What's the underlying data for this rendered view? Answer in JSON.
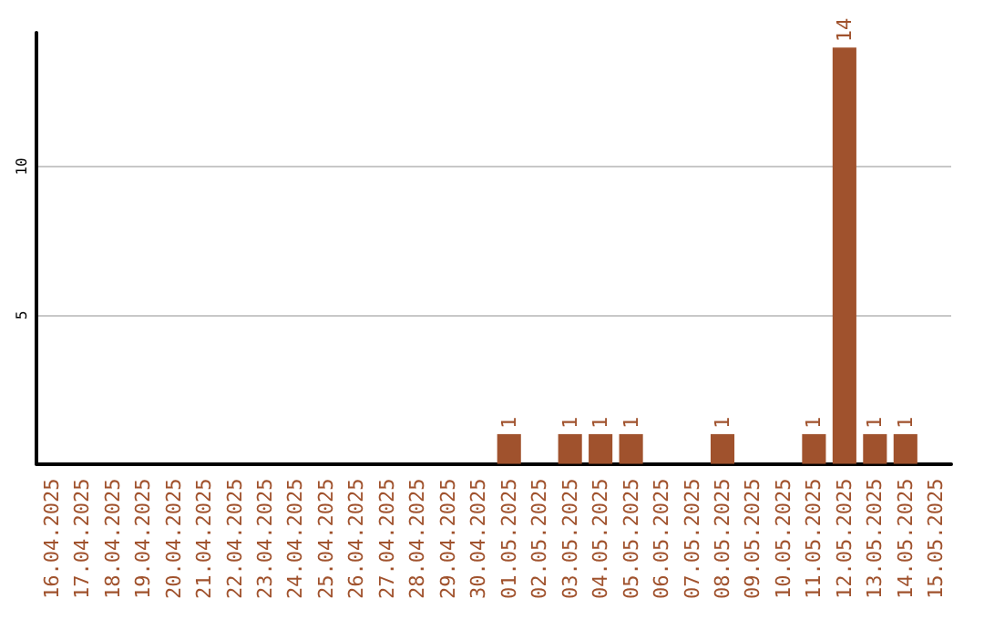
{
  "chart_data": {
    "type": "bar",
    "categories": [
      "16.04.2025",
      "17.04.2025",
      "18.04.2025",
      "19.04.2025",
      "20.04.2025",
      "21.04.2025",
      "22.04.2025",
      "23.04.2025",
      "24.04.2025",
      "25.04.2025",
      "26.04.2025",
      "27.04.2025",
      "28.04.2025",
      "29.04.2025",
      "30.04.2025",
      "01.05.2025",
      "02.05.2025",
      "03.05.2025",
      "04.05.2025",
      "05.05.2025",
      "06.05.2025",
      "07.05.2025",
      "08.05.2025",
      "09.05.2025",
      "10.05.2025",
      "11.05.2025",
      "12.05.2025",
      "13.05.2025",
      "14.05.2025",
      "15.05.2025"
    ],
    "values": [
      0,
      0,
      0,
      0,
      0,
      0,
      0,
      0,
      0,
      0,
      0,
      0,
      0,
      0,
      0,
      1,
      0,
      1,
      1,
      1,
      0,
      0,
      1,
      0,
      0,
      1,
      14,
      1,
      1,
      0
    ],
    "value_labels": [
      null,
      null,
      null,
      null,
      null,
      null,
      null,
      null,
      null,
      null,
      null,
      null,
      null,
      null,
      null,
      "1",
      null,
      "1",
      "1",
      "1",
      null,
      null,
      "1",
      null,
      null,
      "1",
      "14",
      "1",
      "1",
      null
    ],
    "color": "#a0522d",
    "ylim": [
      0,
      14.5
    ],
    "yticks": [
      5,
      10
    ],
    "grid": "y"
  }
}
